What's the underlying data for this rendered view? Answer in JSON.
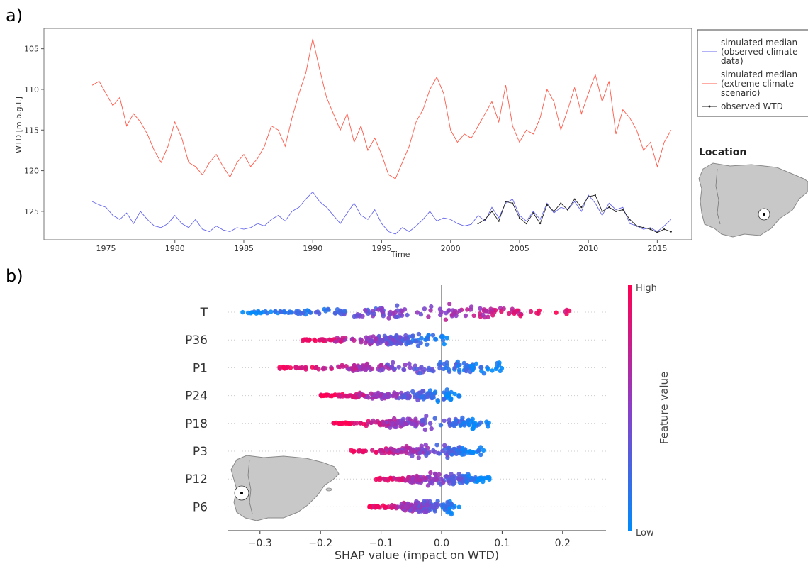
{
  "chart_data": [
    {
      "type": "line",
      "panel_label": "a)",
      "xlabel": "Time",
      "ylabel": "WTD [m b.g.l.]",
      "xlim": [
        1970.5,
        2017.5
      ],
      "ylim": [
        128.5,
        102.5
      ],
      "y_inverted": true,
      "x_ticks": [
        1975,
        1980,
        1985,
        1990,
        1995,
        2000,
        2005,
        2010,
        2015
      ],
      "y_ticks": [
        105,
        110,
        115,
        120,
        125
      ],
      "legend": {
        "placement": "outside right",
        "entries": [
          {
            "label_lines": [
              "simulated median",
              "(observed climate",
              "data)"
            ],
            "color": "#6666ee"
          },
          {
            "label_lines": [
              "simulated median",
              "(extreme climate",
              "scenario)"
            ],
            "color": "#ff5a4a"
          },
          {
            "label_lines": [
              "observed WTD"
            ],
            "color": "#222222"
          }
        ]
      },
      "series": [
        {
          "color": "#ff5a4a",
          "x": [
            1974.0,
            1974.5,
            1975.0,
            1975.5,
            1976.0,
            1976.5,
            1977.0,
            1977.5,
            1978.0,
            1978.5,
            1979.0,
            1979.5,
            1980.0,
            1980.5,
            1981.0,
            1981.5,
            1982.0,
            1982.5,
            1983.0,
            1983.5,
            1984.0,
            1984.5,
            1985.0,
            1985.5,
            1986.0,
            1986.5,
            1987.0,
            1987.5,
            1988.0,
            1988.5,
            1989.0,
            1989.5,
            1990.0,
            1990.5,
            1991.0,
            1991.5,
            1992.0,
            1992.5,
            1993.0,
            1993.5,
            1994.0,
            1994.5,
            1995.0,
            1995.5,
            1996.0,
            1996.5,
            1997.0,
            1997.5,
            1998.0,
            1998.5,
            1999.0,
            1999.5,
            2000.0,
            2000.5,
            2001.0,
            2001.5,
            2002.0,
            2002.5,
            2003.0,
            2003.5,
            2004.0,
            2004.5,
            2005.0,
            2005.5,
            2006.0,
            2006.5,
            2007.0,
            2007.5,
            2008.0,
            2008.5,
            2009.0,
            2009.5,
            2010.0,
            2010.5,
            2011.0,
            2011.5,
            2012.0,
            2012.5,
            2013.0,
            2013.5,
            2014.0,
            2014.5,
            2015.0,
            2015.5,
            2016.0
          ],
          "y": [
            109.5,
            109.0,
            110.5,
            112.0,
            111.0,
            114.5,
            113.0,
            114.0,
            115.5,
            117.5,
            119.0,
            117.0,
            114.0,
            116.0,
            119.0,
            119.5,
            120.5,
            119.0,
            118.0,
            119.5,
            120.8,
            119.0,
            118.0,
            119.5,
            118.5,
            117.0,
            114.5,
            115.0,
            117.0,
            113.5,
            110.5,
            108.0,
            103.8,
            107.5,
            111.0,
            113.0,
            115.0,
            113.0,
            116.5,
            114.5,
            117.5,
            116.0,
            118.0,
            120.5,
            121.0,
            119.0,
            117.0,
            114.0,
            112.5,
            110.0,
            108.5,
            110.5,
            115.0,
            116.5,
            115.5,
            116.0,
            114.5,
            113.0,
            111.5,
            114.0,
            109.5,
            114.5,
            116.5,
            115.0,
            115.5,
            113.5,
            110.0,
            111.5,
            115.0,
            112.5,
            109.8,
            113.0,
            110.5,
            108.2,
            111.5,
            109.0,
            115.5,
            112.5,
            113.5,
            115.0,
            117.5,
            116.5,
            119.5,
            116.5,
            115.0
          ]
        },
        {
          "color": "#6666ee",
          "x": [
            1974.0,
            1974.5,
            1975.0,
            1975.5,
            1976.0,
            1976.5,
            1977.0,
            1977.5,
            1978.0,
            1978.5,
            1979.0,
            1979.5,
            1980.0,
            1980.5,
            1981.0,
            1981.5,
            1982.0,
            1982.5,
            1983.0,
            1983.5,
            1984.0,
            1984.5,
            1985.0,
            1985.5,
            1986.0,
            1986.5,
            1987.0,
            1987.5,
            1988.0,
            1988.5,
            1989.0,
            1989.5,
            1990.0,
            1990.5,
            1991.0,
            1991.5,
            1992.0,
            1992.5,
            1993.0,
            1993.5,
            1994.0,
            1994.5,
            1995.0,
            1995.5,
            1996.0,
            1996.5,
            1997.0,
            1997.5,
            1998.0,
            1998.5,
            1999.0,
            1999.5,
            2000.0,
            2000.5,
            2001.0,
            2001.5,
            2002.0,
            2002.5,
            2003.0,
            2003.5,
            2004.0,
            2004.5,
            2005.0,
            2005.5,
            2006.0,
            2006.5,
            2007.0,
            2007.5,
            2008.0,
            2008.5,
            2009.0,
            2009.5,
            2010.0,
            2010.5,
            2011.0,
            2011.5,
            2012.0,
            2012.5,
            2013.0,
            2013.5,
            2014.0,
            2014.5,
            2015.0,
            2015.5,
            2016.0
          ],
          "y": [
            123.8,
            124.2,
            124.5,
            125.5,
            126.0,
            125.2,
            126.5,
            125.0,
            126.0,
            126.8,
            127.0,
            126.5,
            125.5,
            126.5,
            127.0,
            126.0,
            127.2,
            127.5,
            126.8,
            127.3,
            127.5,
            127.0,
            127.2,
            127.0,
            126.5,
            126.8,
            126.0,
            125.5,
            126.2,
            125.0,
            124.5,
            123.5,
            122.6,
            123.8,
            124.5,
            125.5,
            126.5,
            125.2,
            124.0,
            125.5,
            126.0,
            124.8,
            126.5,
            127.5,
            127.8,
            127.0,
            127.5,
            126.8,
            126.0,
            125.0,
            126.2,
            125.8,
            126.0,
            126.5,
            126.8,
            126.6,
            125.5,
            126.2,
            124.5,
            125.8,
            124.0,
            123.5,
            125.5,
            126.2,
            125.0,
            126.0,
            124.0,
            125.2,
            124.5,
            124.8,
            123.8,
            125.0,
            123.0,
            124.0,
            125.5,
            124.0,
            124.8,
            124.5,
            126.5,
            126.8,
            127.2,
            127.0,
            127.5,
            126.8,
            126.0
          ]
        },
        {
          "color": "#222222",
          "x": [
            2002.0,
            2002.5,
            2003.0,
            2003.5,
            2004.0,
            2004.5,
            2005.0,
            2005.5,
            2006.0,
            2006.5,
            2007.0,
            2007.5,
            2008.0,
            2008.5,
            2009.0,
            2009.5,
            2010.0,
            2010.5,
            2011.0,
            2011.5,
            2012.0,
            2012.5,
            2013.0,
            2013.5,
            2014.0,
            2014.5,
            2015.0,
            2015.5,
            2016.0
          ],
          "y": [
            126.5,
            126.0,
            125.0,
            126.2,
            123.8,
            124.0,
            125.8,
            126.5,
            125.2,
            126.5,
            124.2,
            125.0,
            124.0,
            124.8,
            123.5,
            124.5,
            123.2,
            123.0,
            125.0,
            124.5,
            125.0,
            124.8,
            126.0,
            126.8,
            127.0,
            127.2,
            127.6,
            127.2,
            127.5
          ]
        }
      ],
      "inset": {
        "title": "Location"
      }
    },
    {
      "type": "scatter",
      "subtype": "beeswarm",
      "panel_label": "b)",
      "xlabel": "SHAP value (impact on WTD)",
      "xlim": [
        -0.35,
        0.27
      ],
      "x_ticks": [
        -0.3,
        -0.2,
        -0.1,
        0.0,
        0.1,
        0.2
      ],
      "x_tick_labels": [
        "−0.3",
        "−0.2",
        "−0.1",
        "0.0",
        "0.1",
        "0.2"
      ],
      "categories": [
        "T",
        "P36",
        "P1",
        "P24",
        "P18",
        "P3",
        "P12",
        "P6"
      ],
      "colorbar": {
        "title": "Feature value",
        "high_label": "High",
        "low_label": "Low",
        "high_color": "#ff0052",
        "low_color": "#008bfb"
      },
      "distributions": [
        {
          "feature": "T",
          "min": -0.33,
          "max": 0.24,
          "low_side": "negative"
        },
        {
          "feature": "P36",
          "min": -0.23,
          "max": 0.01,
          "low_side": "positive"
        },
        {
          "feature": "P1",
          "min": -0.27,
          "max": 0.1,
          "low_side": "positive"
        },
        {
          "feature": "P24",
          "min": -0.2,
          "max": 0.03,
          "low_side": "positive"
        },
        {
          "feature": "P18",
          "min": -0.18,
          "max": 0.08,
          "low_side": "positive"
        },
        {
          "feature": "P3",
          "min": -0.15,
          "max": 0.07,
          "low_side": "positive"
        },
        {
          "feature": "P12",
          "min": -0.11,
          "max": 0.08,
          "low_side": "positive"
        },
        {
          "feature": "P6",
          "min": -0.12,
          "max": 0.03,
          "low_side": "positive"
        }
      ]
    }
  ]
}
